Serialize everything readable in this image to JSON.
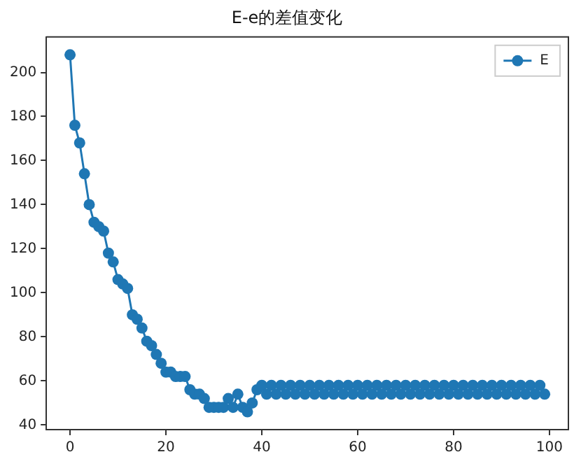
{
  "chart_data": {
    "type": "line",
    "title": "E-e的差值变化",
    "x": [
      0,
      1,
      2,
      3,
      4,
      5,
      6,
      7,
      8,
      9,
      10,
      11,
      12,
      13,
      14,
      15,
      16,
      17,
      18,
      19,
      20,
      21,
      22,
      23,
      24,
      25,
      26,
      27,
      28,
      29,
      30,
      31,
      32,
      33,
      34,
      35,
      36,
      37,
      38,
      39,
      40,
      41,
      42,
      43,
      44,
      45,
      46,
      47,
      48,
      49,
      50,
      51,
      52,
      53,
      54,
      55,
      56,
      57,
      58,
      59,
      60,
      61,
      62,
      63,
      64,
      65,
      66,
      67,
      68,
      69,
      70,
      71,
      72,
      73,
      74,
      75,
      76,
      77,
      78,
      79,
      80,
      81,
      82,
      83,
      84,
      85,
      86,
      87,
      88,
      89,
      90,
      91,
      92,
      93,
      94,
      95,
      96,
      97,
      98,
      99
    ],
    "series": [
      {
        "name": "E",
        "color": "#1f77b4",
        "values": [
          208,
          176,
          168,
          154,
          140,
          132,
          130,
          128,
          118,
          114,
          106,
          104,
          102,
          90,
          88,
          84,
          78,
          76,
          72,
          68,
          64,
          64,
          62,
          62,
          62,
          56,
          54,
          54,
          52,
          48,
          48,
          48,
          48,
          52,
          48,
          54,
          48,
          46,
          50,
          56,
          58,
          54,
          58,
          54,
          58,
          54,
          58,
          54,
          58,
          54,
          58,
          54,
          58,
          54,
          58,
          54,
          58,
          54,
          58,
          54,
          58,
          54,
          58,
          54,
          58,
          54,
          58,
          54,
          58,
          54,
          58,
          54,
          58,
          54,
          58,
          54,
          58,
          54,
          58,
          54,
          58,
          54,
          58,
          54,
          58,
          54,
          58,
          54,
          58,
          54,
          58,
          54,
          58,
          54,
          58,
          54,
          58,
          54,
          58,
          54
        ]
      }
    ],
    "xlim": [
      -4.95,
      103.95
    ],
    "xticks": [
      0,
      20,
      40,
      60,
      80,
      100
    ],
    "ylim": [
      37.9,
      216.1
    ],
    "yticks": [
      40,
      60,
      80,
      100,
      120,
      140,
      160,
      180,
      200
    ],
    "grid": false,
    "legend": "top right",
    "marker": "circle",
    "line_style": "solid"
  }
}
